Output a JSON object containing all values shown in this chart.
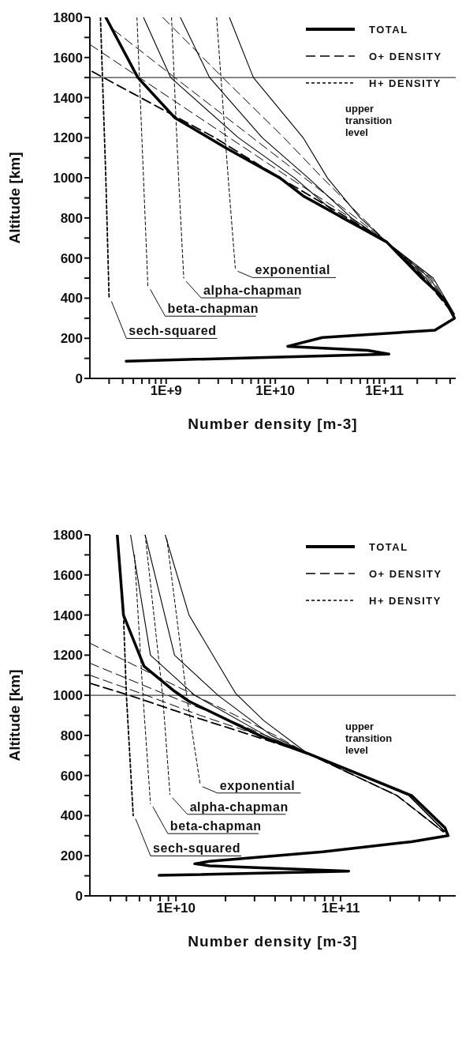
{
  "chart_data": [
    {
      "type": "line",
      "xlabel": "Number density [m-3]",
      "ylabel": "Altitude [km]",
      "log": "x",
      "legend": "top right",
      "marker": "none",
      "xlim": [
        200000000.0,
        450000000000.0
      ],
      "xticks": [
        {
          "value": 300000000.0,
          "label": null
        },
        {
          "value": 400000000.0,
          "label": null
        },
        {
          "value": 500000000.0,
          "label": null
        },
        {
          "value": 600000000.0,
          "label": null
        },
        {
          "value": 700000000.0,
          "label": null
        },
        {
          "value": 800000000.0,
          "label": null
        },
        {
          "value": 900000000.0,
          "label": null
        },
        {
          "value": 1000000000.0,
          "label": "1E+9"
        },
        {
          "value": 2000000000.0,
          "label": null
        },
        {
          "value": 3000000000.0,
          "label": null
        },
        {
          "value": 4000000000.0,
          "label": null
        },
        {
          "value": 5000000000.0,
          "label": null
        },
        {
          "value": 6000000000.0,
          "label": null
        },
        {
          "value": 7000000000.0,
          "label": null
        },
        {
          "value": 8000000000.0,
          "label": null
        },
        {
          "value": 9000000000.0,
          "label": null
        },
        {
          "value": 10000000000.0,
          "label": "1E+10"
        },
        {
          "value": 20000000000.0,
          "label": null
        },
        {
          "value": 30000000000.0,
          "label": null
        },
        {
          "value": 40000000000.0,
          "label": null
        },
        {
          "value": 50000000000.0,
          "label": null
        },
        {
          "value": 60000000000.0,
          "label": null
        },
        {
          "value": 70000000000.0,
          "label": null
        },
        {
          "value": 80000000000.0,
          "label": null
        },
        {
          "value": 90000000000.0,
          "label": null
        },
        {
          "value": 100000000000.0,
          "label": "1E+11"
        },
        {
          "value": 200000000000.0,
          "label": null
        },
        {
          "value": 300000000000.0,
          "label": null
        },
        {
          "value": 400000000000.0,
          "label": null
        }
      ],
      "ylim": [
        0,
        1800
      ],
      "yticks": [
        0,
        {
          "value": 100,
          "label": null
        },
        200,
        {
          "value": 300,
          "label": null
        },
        400,
        {
          "value": 500,
          "label": null
        },
        600,
        {
          "value": 700,
          "label": null
        },
        800,
        {
          "value": 900,
          "label": null
        },
        1000,
        {
          "value": 1100,
          "label": null
        },
        1200,
        {
          "value": 1300,
          "label": null
        },
        1400,
        {
          "value": 1500,
          "label": null
        },
        1600,
        {
          "value": 1700,
          "label": null
        },
        1800
      ],
      "series": [
        {
          "name": "TOTAL",
          "color": "#000000",
          "line_style": "solid",
          "x": [
            280000000.0,
            550000000.0,
            1200000000.0,
            3500000000.0,
            11000000000.0,
            18000000000.0,
            105000000000.0,
            220000000000.0,
            350000000000.0,
            440000000000.0,
            290000000000.0,
            27000000000.0,
            13000000000.0,
            70000000000.0,
            110000000000.0,
            430000000.0
          ],
          "values": [
            1800,
            1500,
            1300,
            1150,
            1000,
            910,
            680,
            500,
            400,
            300,
            240,
            204,
            160,
            140,
            121,
            86
          ]
        },
        {
          "color": "#000000",
          "line_style": "solid",
          "x": [
            620000000.0,
            1100000000.0,
            4600000000.0,
            15000000000.0,
            40000000000.0,
            105000000000.0,
            240000000000.0,
            430000000000.0
          ],
          "values": [
            1800,
            1500,
            1200,
            1000,
            800,
            680,
            500,
            320
          ]
        },
        {
          "color": "#000000",
          "line_style": "solid",
          "x": [
            1350000000.0,
            2500000000.0,
            7600000000.0,
            20000000000.0,
            50000000000.0,
            105000000000.0,
            260000000000.0,
            430000000000.0
          ],
          "values": [
            1800,
            1500,
            1200,
            1000,
            800,
            680,
            500,
            320
          ]
        },
        {
          "color": "#000000",
          "line_style": "solid",
          "x": [
            3800000000.0,
            6300000000.0,
            18000000000.0,
            30000000000.0,
            60000000000.0,
            105000000000.0,
            280000000000.0,
            440000000000.0
          ],
          "values": [
            1800,
            1500,
            1200,
            1000,
            800,
            680,
            500,
            320
          ]
        },
        {
          "name": "O+ DENSITY",
          "color": "#000000",
          "line_style": "dashed",
          "x": [
            210000000.0,
            2800000000.0,
            11000000000.0,
            46000000000.0,
            105000000000.0,
            230000000000.0,
            430000000000.0
          ],
          "values": [
            1530,
            1200,
            1000,
            800,
            680,
            500,
            320
          ]
        },
        {
          "color": "#000000",
          "line_style": "dashed",
          "x": [
            200000000.0,
            1070000000.0,
            3800000000.0,
            13500000000.0,
            49000000000.0,
            105000000000.0,
            240000000000.0,
            430000000000.0
          ],
          "values": [
            1665,
            1400,
            1200,
            1000,
            800,
            680,
            500,
            320
          ]
        },
        {
          "color": "#000000",
          "line_style": "dashed",
          "x": [
            330000000.0,
            1200000000.0,
            6200000000.0,
            18500000000.0,
            55000000000.0,
            105000000000.0,
            250000000000.0,
            430000000000.0
          ],
          "values": [
            1738,
            1500,
            1200,
            1000,
            800,
            680,
            500,
            320
          ]
        },
        {
          "color": "#000000",
          "line_style": "dashed",
          "x": [
            930000000.0,
            3300000000.0,
            12000000000.0,
            27000000000.0,
            63000000000.0,
            105000000000.0,
            270000000000.0,
            430000000000.0
          ],
          "values": [
            1800,
            1500,
            1200,
            1000,
            800,
            680,
            500,
            320
          ]
        },
        {
          "name": "H+ DENSITY",
          "color": "#000000",
          "line_style": "dotted",
          "x": [
            250000000.0,
            280000000.0,
            300000000.0
          ],
          "values": [
            1800,
            1000,
            400
          ]
        },
        {
          "color": "#000000",
          "line_style": "dotted",
          "x": [
            540000000.0,
            620000000.0,
            680000000.0
          ],
          "values": [
            1800,
            1000,
            460
          ]
        },
        {
          "color": "#000000",
          "line_style": "dotted",
          "x": [
            1120000000.0,
            1300000000.0,
            1450000000.0
          ],
          "values": [
            1800,
            1000,
            500
          ]
        },
        {
          "color": "#000000",
          "line_style": "dotted",
          "x": [
            2900000000.0,
            3700000000.0,
            4300000000.0
          ],
          "values": [
            1800,
            1000,
            550
          ]
        }
      ],
      "ref_lines": [
        {
          "axis": "y",
          "value": 1500,
          "label": "upper transition level"
        }
      ],
      "annotations": [
        {
          "text": "sech-squared",
          "x": 300000000.0,
          "y": 400
        },
        {
          "text": "beta-chapman",
          "x": 680000000.0,
          "y": 460
        },
        {
          "text": "alpha-chapman",
          "x": 1450000000.0,
          "y": 500
        },
        {
          "text": "exponential",
          "x": 4300000000.0,
          "y": 550
        }
      ]
    },
    {
      "type": "line",
      "xlabel": "Number density [m-3]",
      "ylabel": "Altitude [km]",
      "log": "x",
      "legend": "top right",
      "marker": "none",
      "xlim": [
        3000000000.0,
        500000000000.0
      ],
      "xticks": [
        {
          "value": 4000000000.0,
          "label": null
        },
        {
          "value": 5000000000.0,
          "label": null
        },
        {
          "value": 6000000000.0,
          "label": null
        },
        {
          "value": 7000000000.0,
          "label": null
        },
        {
          "value": 8000000000.0,
          "label": null
        },
        {
          "value": 9000000000.0,
          "label": null
        },
        {
          "value": 10000000000.0,
          "label": "1E+10"
        },
        {
          "value": 20000000000.0,
          "label": null
        },
        {
          "value": 30000000000.0,
          "label": null
        },
        {
          "value": 40000000000.0,
          "label": null
        },
        {
          "value": 50000000000.0,
          "label": null
        },
        {
          "value": 60000000000.0,
          "label": null
        },
        {
          "value": 70000000000.0,
          "label": null
        },
        {
          "value": 80000000000.0,
          "label": null
        },
        {
          "value": 90000000000.0,
          "label": null
        },
        {
          "value": 100000000000.0,
          "label": "1E+11"
        },
        {
          "value": 200000000000.0,
          "label": null
        },
        {
          "value": 300000000000.0,
          "label": null
        },
        {
          "value": 400000000000.0,
          "label": null
        }
      ],
      "ylim": [
        0,
        1800
      ],
      "yticks": [
        0,
        {
          "value": 100,
          "label": null
        },
        200,
        {
          "value": 300,
          "label": null
        },
        400,
        {
          "value": 500,
          "label": null
        },
        600,
        {
          "value": 700,
          "label": null
        },
        800,
        {
          "value": 900,
          "label": null
        },
        1000,
        {
          "value": 1100,
          "label": null
        },
        1200,
        {
          "value": 1300,
          "label": null
        },
        1400,
        {
          "value": 1500,
          "label": null
        },
        1600,
        {
          "value": 1700,
          "label": null
        },
        1800
      ],
      "series": [
        {
          "name": "TOTAL",
          "color": "#000000",
          "line_style": "solid",
          "x": [
            4400000000.0,
            4800000000.0,
            6400000000.0,
            9800000000.0,
            12000000000.0,
            34000000000.0,
            63000000000.0,
            270000000000.0,
            430000000000.0,
            450000000000.0,
            270000000000.0,
            78000000000.0,
            16000000000.0,
            13000000000.0,
            16000000000.0,
            112000000000.0,
            7900000000.0
          ],
          "values": [
            1800,
            1400,
            1145,
            1020,
            970,
            790,
            710,
            500,
            340,
            300,
            270,
            220,
            172,
            160,
            150,
            123,
            102
          ]
        },
        {
          "color": "#000000",
          "line_style": "solid",
          "x": [
            5300000000.0,
            7000000000.0,
            13000000000.0,
            35000000000.0,
            63000000000.0,
            260000000000.0,
            430000000000.0
          ],
          "values": [
            1800,
            1200,
            1000,
            800,
            710,
            500,
            320
          ]
        },
        {
          "color": "#000000",
          "line_style": "solid",
          "x": [
            6500000000.0,
            9800000000.0,
            18000000000.0,
            38000000000.0,
            63000000000.0,
            260000000000.0,
            430000000000.0
          ],
          "values": [
            1800,
            1200,
            1000,
            800,
            710,
            500,
            320
          ]
        },
        {
          "color": "#000000",
          "line_style": "solid",
          "x": [
            8600000000.0,
            12000000000.0,
            23000000000.0,
            34000000000.0,
            63000000000.0,
            260000000000.0,
            430000000000.0
          ],
          "values": [
            1800,
            1400,
            1010,
            875,
            710,
            500,
            320
          ]
        },
        {
          "name": "O+ DENSITY",
          "color": "#000000",
          "line_style": "dashed",
          "x": [
            3000000000.0,
            5200000000.0,
            12000000000.0,
            29000000000.0,
            63000000000.0,
            220000000000.0,
            420000000000.0
          ],
          "values": [
            1060,
            1000,
            900,
            800,
            710,
            500,
            320
          ]
        },
        {
          "color": "#000000",
          "line_style": "dashed",
          "x": [
            3000000000.0,
            6600000000.0,
            14000000000.0,
            32000000000.0,
            63000000000.0,
            220000000000.0,
            420000000000.0
          ],
          "values": [
            1100,
            1000,
            900,
            800,
            710,
            500,
            320
          ]
        },
        {
          "color": "#000000",
          "line_style": "dashed",
          "x": [
            3000000000.0,
            8900000000.0,
            18000000000.0,
            35000000000.0,
            63000000000.0,
            220000000000.0,
            420000000000.0
          ],
          "values": [
            1160,
            1000,
            900,
            800,
            710,
            500,
            320
          ]
        },
        {
          "color": "#000000",
          "line_style": "dashed",
          "x": [
            3000000000.0,
            13000000000.0,
            23000000000.0,
            40000000000.0,
            63000000000.0,
            220000000000.0,
            420000000000.0
          ],
          "values": [
            1260,
            1000,
            900,
            800,
            710,
            500,
            320
          ]
        },
        {
          "name": "H+ DENSITY",
          "color": "#000000",
          "line_style": "dotted",
          "x": [
            4800000000.0,
            5000000000.0,
            5500000000.0
          ],
          "values": [
            1400,
            1000,
            400
          ]
        },
        {
          "color": "#000000",
          "line_style": "dotted",
          "x": [
            5600000000.0,
            6300000000.0,
            7000000000.0
          ],
          "values": [
            1700,
            1000,
            460
          ]
        },
        {
          "color": "#000000",
          "line_style": "dotted",
          "x": [
            6500000000.0,
            8300000000.0,
            9200000000.0
          ],
          "values": [
            1800,
            1000,
            505
          ]
        },
        {
          "color": "#000000",
          "line_style": "dotted",
          "x": [
            8800000000.0,
            11600000000.0,
            14000000000.0
          ],
          "values": [
            1780,
            1000,
            560
          ]
        }
      ],
      "ref_lines": [
        {
          "axis": "y",
          "value": 1000,
          "label": "upper transition level"
        }
      ],
      "annotations": [
        {
          "text": "sech-squared",
          "x": 5500000000.0,
          "y": 400
        },
        {
          "text": "beta-chapman",
          "x": 7000000000.0,
          "y": 460
        },
        {
          "text": "alpha-chapman",
          "x": 9200000000.0,
          "y": 505
        },
        {
          "text": "exponential",
          "x": 14000000000.0,
          "y": 560
        }
      ]
    }
  ]
}
